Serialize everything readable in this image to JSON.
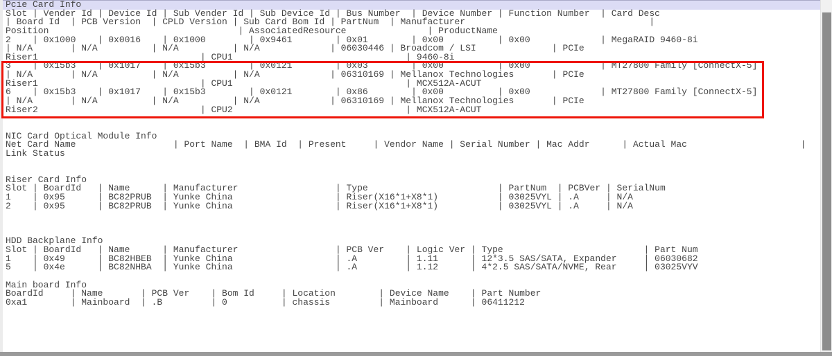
{
  "window": {
    "background": "#ffffff",
    "text_color": "#454545",
    "highlight_color": "#dcdcf5",
    "annotation_box_color": "#ee1509",
    "scrollbar_track_color": "#f1f1f1",
    "scrollbar_thumb_color": "#8d8d8d"
  },
  "terminal": {
    "highlight_line_index": 0,
    "lines": [
      "Pcie Card Info",
      "Slot | Vender Id | Device Id | Sub Vender Id | Sub Device Id | Bus Number  | Device Number | Function Number  | Card Desc",
      "| Board Id  | PCB Version  | CPLD Version | Sub Card Bom Id | PartNum  | Manufacturer                                  |",
      "Position                                   | AssociatedResource               | ProductName",
      "2    | 0x1000    | 0x0016    | 0x1000        | 0x9461        | 0x01        | 0x00          | 0x00             | MegaRAID 9460-8i",
      "| N/A       | N/A          | N/A          | N/A             | 06030446 | Broadcom / LSI              | PCIe",
      "Riser1                              | CPU1                                | 9460-8i",
      "3    | 0x15b3    | 0x1017    | 0x15b3        | 0x0121        | 0x03        | 0x00          | 0x00             | MT27800 Family [ConnectX-5]",
      "| N/A       | N/A          | N/A          | N/A             | 06310169 | Mellanox Technologies       | PCIe",
      "Riser1                              | CPU1                                | MCX512A-ACUT",
      "6    | 0x15b3    | 0x1017    | 0x15b3        | 0x0121        | 0x86        | 0x00          | 0x00             | MT27800 Family [ConnectX-5]",
      "| N/A       | N/A          | N/A          | N/A             | 06310169 | Mellanox Technologies       | PCIe",
      "Riser2                              | CPU2                                | MCX512A-ACUT",
      "",
      "",
      "NIC Card Optical Module Info",
      "Net Card Name                  | Port Name  | BMA Id  | Present     | Vendor Name | Serial Number | Mac Addr      | Actual Mac                     |",
      "Link Status",
      "",
      "",
      "Riser Card Info",
      "Slot | BoardId   | Name      | Manufacturer                  | Type                        | PartNum  | PCBVer | SerialNum",
      "1    | 0x95      | BC82PRUB  | Yunke China                   | Riser(X16*1+X8*1)           | 03025VYL | .A     | N/A",
      "2    | 0x95      | BC82PRUB  | Yunke China                   | Riser(X16*1+X8*1)           | 03025VYL | .A     | N/A",
      "",
      "",
      "",
      "HDD Backplane Info",
      "Slot | BoardId   | Name      | Manufacturer                  | PCB Ver    | Logic Ver | Type                          | Part Num",
      "1    | 0x49      | BC82HBEB  | Yunke China                   | .A         | 1.11      | 12*3.5 SAS/SATA, Expander     | 06030682",
      "5    | 0x4e      | BC82NHBA  | Yunke China                   | .A         | 1.12      | 4*2.5 SAS/SATA/NVME, Rear     | 03025VYV",
      "",
      "Main board Info",
      "BoardId     | Name       | PCB Ver    | Bom Id     | Location        | Device Name    | Part Number",
      "0xa1        | Mainboard  | .B         | 0          | chassis         | Mainboard      | 06411212"
    ],
    "tables": [
      {
        "title": "Pcie Card Info",
        "columns": [
          "Slot",
          "Vender Id",
          "Device Id",
          "Sub Vender Id",
          "Sub Device Id",
          "Bus Number",
          "Device Number",
          "Function Number",
          "Card Desc",
          "Board Id",
          "PCB Version",
          "CPLD Version",
          "Sub Card Bom Id",
          "PartNum",
          "Manufacturer",
          "Position",
          "AssociatedResource",
          "ProductName"
        ],
        "rows": [
          [
            "2",
            "0x1000",
            "0x0016",
            "0x1000",
            "0x9461",
            "0x01",
            "0x00",
            "0x00",
            "MegaRAID 9460-8i",
            "N/A",
            "N/A",
            "N/A",
            "N/A",
            "06030446",
            "Broadcom / LSI",
            "Riser1",
            "CPU1",
            "9460-8i"
          ],
          [
            "3",
            "0x15b3",
            "0x1017",
            "0x15b3",
            "0x0121",
            "0x03",
            "0x00",
            "0x00",
            "MT27800 Family [ConnectX-5]",
            "N/A",
            "N/A",
            "N/A",
            "N/A",
            "06310169",
            "Mellanox Technologies",
            "Riser1",
            "CPU1",
            "MCX512A-ACUT"
          ],
          [
            "6",
            "0x15b3",
            "0x1017",
            "0x15b3",
            "0x0121",
            "0x86",
            "0x00",
            "0x00",
            "MT27800 Family [ConnectX-5]",
            "N/A",
            "N/A",
            "N/A",
            "N/A",
            "06310169",
            "Mellanox Technologies",
            "Riser2",
            "CPU2",
            "MCX512A-ACUT"
          ]
        ]
      },
      {
        "title": "NIC Card Optical Module Info",
        "columns": [
          "Net Card Name",
          "Port Name",
          "BMA Id",
          "Present",
          "Vendor Name",
          "Serial Number",
          "Mac Addr",
          "Actual Mac",
          "Link Status"
        ],
        "rows": []
      },
      {
        "title": "Riser Card Info",
        "columns": [
          "Slot",
          "BoardId",
          "Name",
          "Manufacturer",
          "Type",
          "PartNum",
          "PCBVer",
          "SerialNum"
        ],
        "rows": [
          [
            "1",
            "0x95",
            "BC82PRUB",
            "Yunke China",
            "Riser(X16*1+X8*1)",
            "03025VYL",
            ".A",
            "N/A"
          ],
          [
            "2",
            "0x95",
            "BC82PRUB",
            "Yunke China",
            "Riser(X16*1+X8*1)",
            "03025VYL",
            ".A",
            "N/A"
          ]
        ]
      },
      {
        "title": "HDD Backplane Info",
        "columns": [
          "Slot",
          "BoardId",
          "Name",
          "Manufacturer",
          "PCB Ver",
          "Logic Ver",
          "Type",
          "Part Num"
        ],
        "rows": [
          [
            "1",
            "0x49",
            "BC82HBEB",
            "Yunke China",
            ".A",
            "1.11",
            "12*3.5 SAS/SATA, Expander",
            "06030682"
          ],
          [
            "5",
            "0x4e",
            "BC82NHBA",
            "Yunke China",
            ".A",
            "1.12",
            "4*2.5 SAS/SATA/NVME, Rear",
            "03025VYV"
          ]
        ]
      },
      {
        "title": "Main board Info",
        "columns": [
          "BoardId",
          "Name",
          "PCB Ver",
          "Bom Id",
          "Location",
          "Device Name",
          "Part Number"
        ],
        "rows": [
          [
            "0xa1",
            "Mainboard",
            ".B",
            "0",
            "chassis",
            "Mainboard",
            "06411212"
          ]
        ]
      }
    ]
  }
}
